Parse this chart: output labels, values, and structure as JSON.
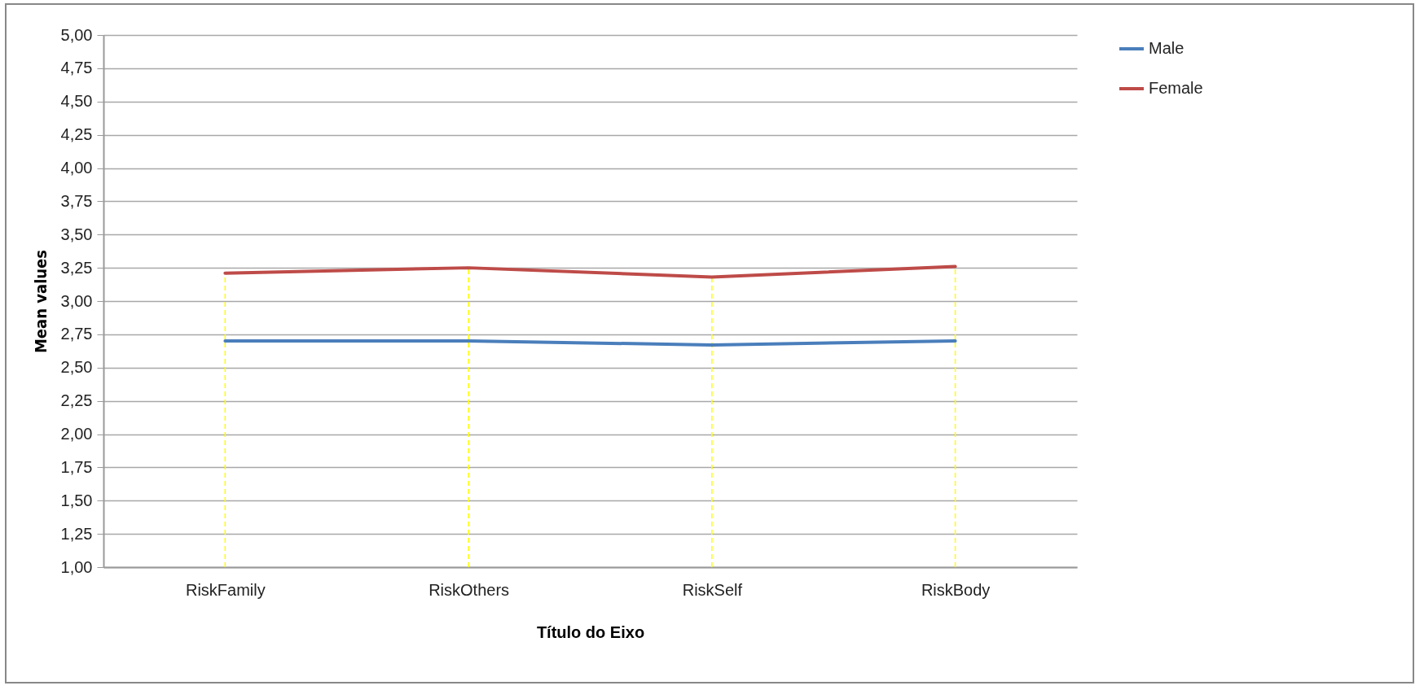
{
  "chart_data": {
    "type": "line",
    "xlabel": "Título do Eixo",
    "ylabel": "Mean values",
    "categories": [
      "RiskFamily",
      "RiskOthers",
      "RiskSelf",
      "RiskBody"
    ],
    "series": [
      {
        "name": "Male",
        "color": "#4a7ebb",
        "values": [
          2.7,
          2.7,
          2.67,
          2.7
        ]
      },
      {
        "name": "Female",
        "color": "#be4b48",
        "values": [
          3.21,
          3.25,
          3.18,
          3.26
        ]
      }
    ],
    "ylim": [
      1,
      5
    ],
    "yticks": [
      {
        "value": 1,
        "label": "1,00"
      },
      {
        "value": 1.25,
        "label": "1,25"
      },
      {
        "value": 1.5,
        "label": "1,50"
      },
      {
        "value": 1.75,
        "label": "1,75"
      },
      {
        "value": 2,
        "label": "2,00"
      },
      {
        "value": 2.25,
        "label": "2,25"
      },
      {
        "value": 2.5,
        "label": "2,50"
      },
      {
        "value": 2.75,
        "label": "2,75"
      },
      {
        "value": 3,
        "label": "3,00"
      },
      {
        "value": 3.25,
        "label": "3,25"
      },
      {
        "value": 3.5,
        "label": "3,50"
      },
      {
        "value": 3.75,
        "label": "3,75"
      },
      {
        "value": 4,
        "label": "4,00"
      },
      {
        "value": 4.25,
        "label": "4,25"
      },
      {
        "value": 4.5,
        "label": "4,50"
      },
      {
        "value": 4.75,
        "label": "4,75"
      },
      {
        "value": 5,
        "label": "5,00"
      }
    ],
    "ref_lines": [
      {
        "axis": "x",
        "value": "RiskFamily",
        "color": "#ffff00",
        "line_style": "dashed"
      },
      {
        "axis": "x",
        "value": "RiskOthers",
        "color": "#ffff00",
        "line_style": "dashed"
      },
      {
        "axis": "x",
        "value": "RiskSelf",
        "color": "#ffff00",
        "line_style": "dashed"
      },
      {
        "axis": "x",
        "value": "RiskBody",
        "color": "#ffff00",
        "line_style": "dashed"
      }
    ],
    "grid": "y",
    "legend": "right",
    "marker": "none",
    "line_style": "solid"
  }
}
